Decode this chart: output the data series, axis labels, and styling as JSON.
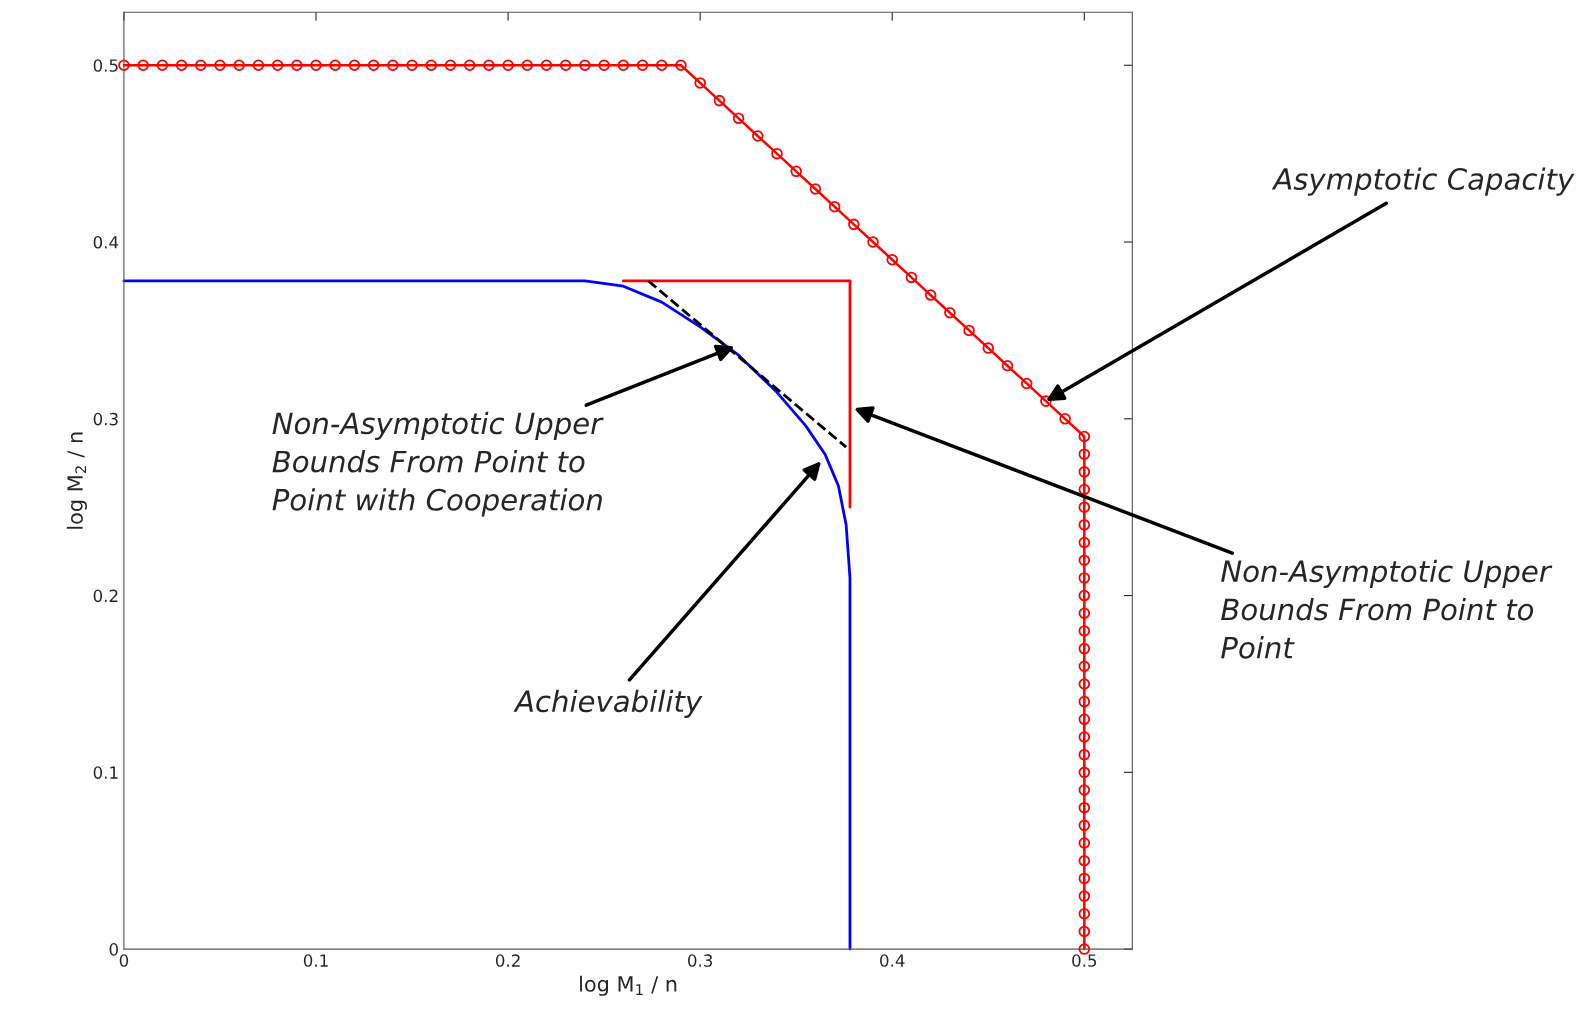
{
  "chart_data": {
    "type": "line",
    "xlabel": "log M$_{1}$ / n",
    "ylabel": "log M$_{2}$ / n",
    "xlim": [
      0,
      0.525
    ],
    "ylim": [
      0,
      0.53
    ],
    "xticks": [
      0,
      0.1,
      0.2,
      0.3,
      0.4,
      0.5
    ],
    "yticks": [
      0,
      0.1,
      0.2,
      0.3,
      0.4,
      0.5
    ],
    "grid": false,
    "series": [
      {
        "color": "#ff0000",
        "marker": "none",
        "line_style": "solid",
        "x": [
          0.26,
          0.378,
          0.378
        ],
        "values": [
          0.378,
          0.378,
          0.25
        ]
      },
      {
        "color": "#0000ff",
        "marker": "none",
        "line_style": "solid",
        "x": [
          0,
          0.24,
          0.26,
          0.28,
          0.3,
          0.32,
          0.34,
          0.355,
          0.365,
          0.372,
          0.376,
          0.378,
          0.378
        ],
        "values": [
          0.378,
          0.378,
          0.375,
          0.366,
          0.352,
          0.336,
          0.315,
          0.296,
          0.28,
          0.262,
          0.24,
          0.21,
          0
        ]
      },
      {
        "color": "#000000",
        "marker": "none",
        "line_style": "dashed",
        "x": [
          0.273,
          0.376
        ],
        "values": [
          0.378,
          0.284
        ]
      },
      {
        "color": "#ff0000",
        "marker": "circle",
        "line_style": "solid",
        "x": [
          0,
          0.01,
          0.02,
          0.03,
          0.04,
          0.05,
          0.06,
          0.07,
          0.08,
          0.09,
          0.1,
          0.11,
          0.12,
          0.13,
          0.14,
          0.15,
          0.16,
          0.17,
          0.18,
          0.19,
          0.2,
          0.21,
          0.22,
          0.23,
          0.24,
          0.25,
          0.26,
          0.27,
          0.28,
          0.29,
          0.3,
          0.31,
          0.32,
          0.33,
          0.34,
          0.35,
          0.36,
          0.37,
          0.38,
          0.39,
          0.4,
          0.41,
          0.42,
          0.43,
          0.44,
          0.45,
          0.46,
          0.47,
          0.48,
          0.49,
          0.5,
          0.5,
          0.5,
          0.5,
          0.5,
          0.5,
          0.5,
          0.5,
          0.5,
          0.5,
          0.5,
          0.5,
          0.5,
          0.5,
          0.5,
          0.5,
          0.5,
          0.5,
          0.5,
          0.5,
          0.5,
          0.5,
          0.5,
          0.5,
          0.5,
          0.5,
          0.5,
          0.5,
          0.5,
          0.5
        ],
        "values": [
          0.5,
          0.5,
          0.5,
          0.5,
          0.5,
          0.5,
          0.5,
          0.5,
          0.5,
          0.5,
          0.5,
          0.5,
          0.5,
          0.5,
          0.5,
          0.5,
          0.5,
          0.5,
          0.5,
          0.5,
          0.5,
          0.5,
          0.5,
          0.5,
          0.5,
          0.5,
          0.5,
          0.5,
          0.5,
          0.5,
          0.49,
          0.48,
          0.47,
          0.46,
          0.45,
          0.44,
          0.43,
          0.42,
          0.41,
          0.4,
          0.39,
          0.38,
          0.37,
          0.36,
          0.35,
          0.34,
          0.33,
          0.32,
          0.31,
          0.3,
          0.29,
          0.28,
          0.27,
          0.26,
          0.25,
          0.24,
          0.23,
          0.22,
          0.21,
          0.2,
          0.19,
          0.18,
          0.17,
          0.16,
          0.15,
          0.14,
          0.13,
          0.12,
          0.11,
          0.1,
          0.09,
          0.08,
          0.07,
          0.06,
          0.05,
          0.04,
          0.03,
          0.02,
          0.01,
          0
        ]
      }
    ],
    "annotations": [
      {
        "text": "Asymptotic Capacity",
        "x": 0.48,
        "y": 0.31
      },
      {
        "text": "Non-Asymptotic Upper\nBounds From Point to\nPoint with Cooperation",
        "x": 0.318,
        "y": 0.341
      },
      {
        "text": "Achievability",
        "x": 0.363,
        "y": 0.276
      },
      {
        "text": "Non-Asymptotic Upper\nBounds From Point to\nPoint",
        "x": 0.38,
        "y": 0.306
      }
    ]
  }
}
